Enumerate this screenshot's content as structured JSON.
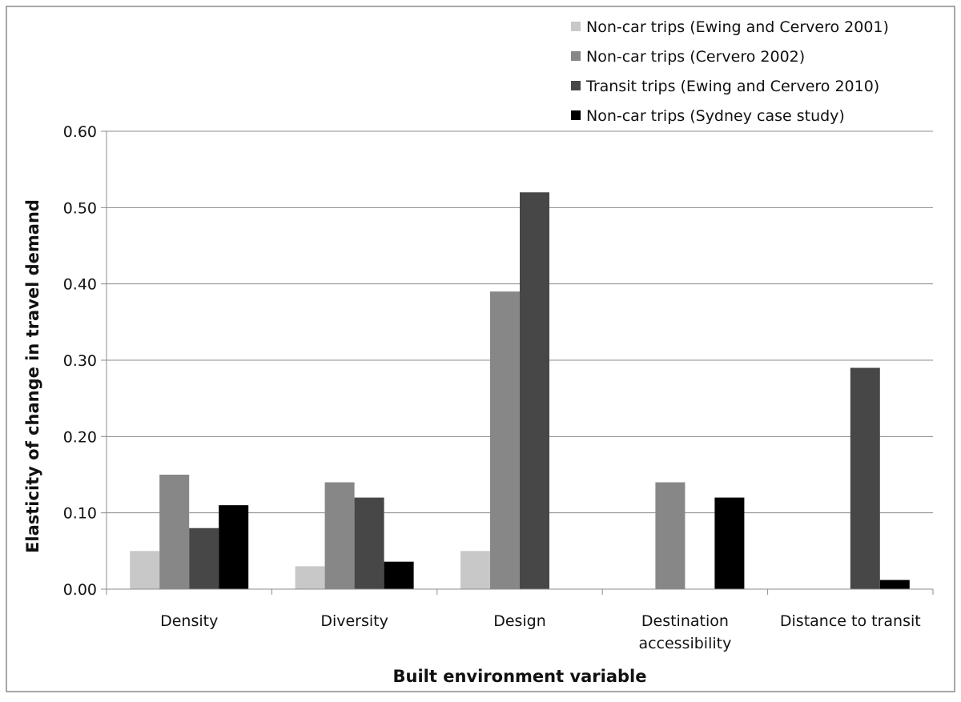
{
  "chart_data": {
    "type": "bar",
    "xlabel": "Built environment variable",
    "ylabel": "Elasticity of change in travel demand",
    "ylim": [
      0,
      0.6
    ],
    "yticks": [
      "0.00",
      "0.10",
      "0.20",
      "0.30",
      "0.40",
      "0.50",
      "0.60"
    ],
    "grid": true,
    "legend_position": "top-right",
    "categories": [
      [
        "Density"
      ],
      [
        "Diversity"
      ],
      [
        "Design"
      ],
      [
        "Destination",
        "accessibility"
      ],
      [
        "Distance to transit"
      ]
    ],
    "series": [
      {
        "name": "Non-car trips (Ewing and Cervero 2001)",
        "color": "#c8c8c8",
        "values": [
          0.05,
          0.03,
          0.05,
          0,
          0
        ]
      },
      {
        "name": "Non-car trips (Cervero 2002)",
        "color": "#878787",
        "values": [
          0.15,
          0.14,
          0.39,
          0.14,
          0
        ]
      },
      {
        "name": "Transit trips (Ewing and Cervero 2010)",
        "color": "#474747",
        "values": [
          0.08,
          0.12,
          0.52,
          0,
          0.29
        ]
      },
      {
        "name": "Non-car trips (Sydney case study)",
        "color": "#000000",
        "values": [
          0.11,
          0.036,
          0,
          0.12,
          0.012
        ]
      }
    ]
  }
}
